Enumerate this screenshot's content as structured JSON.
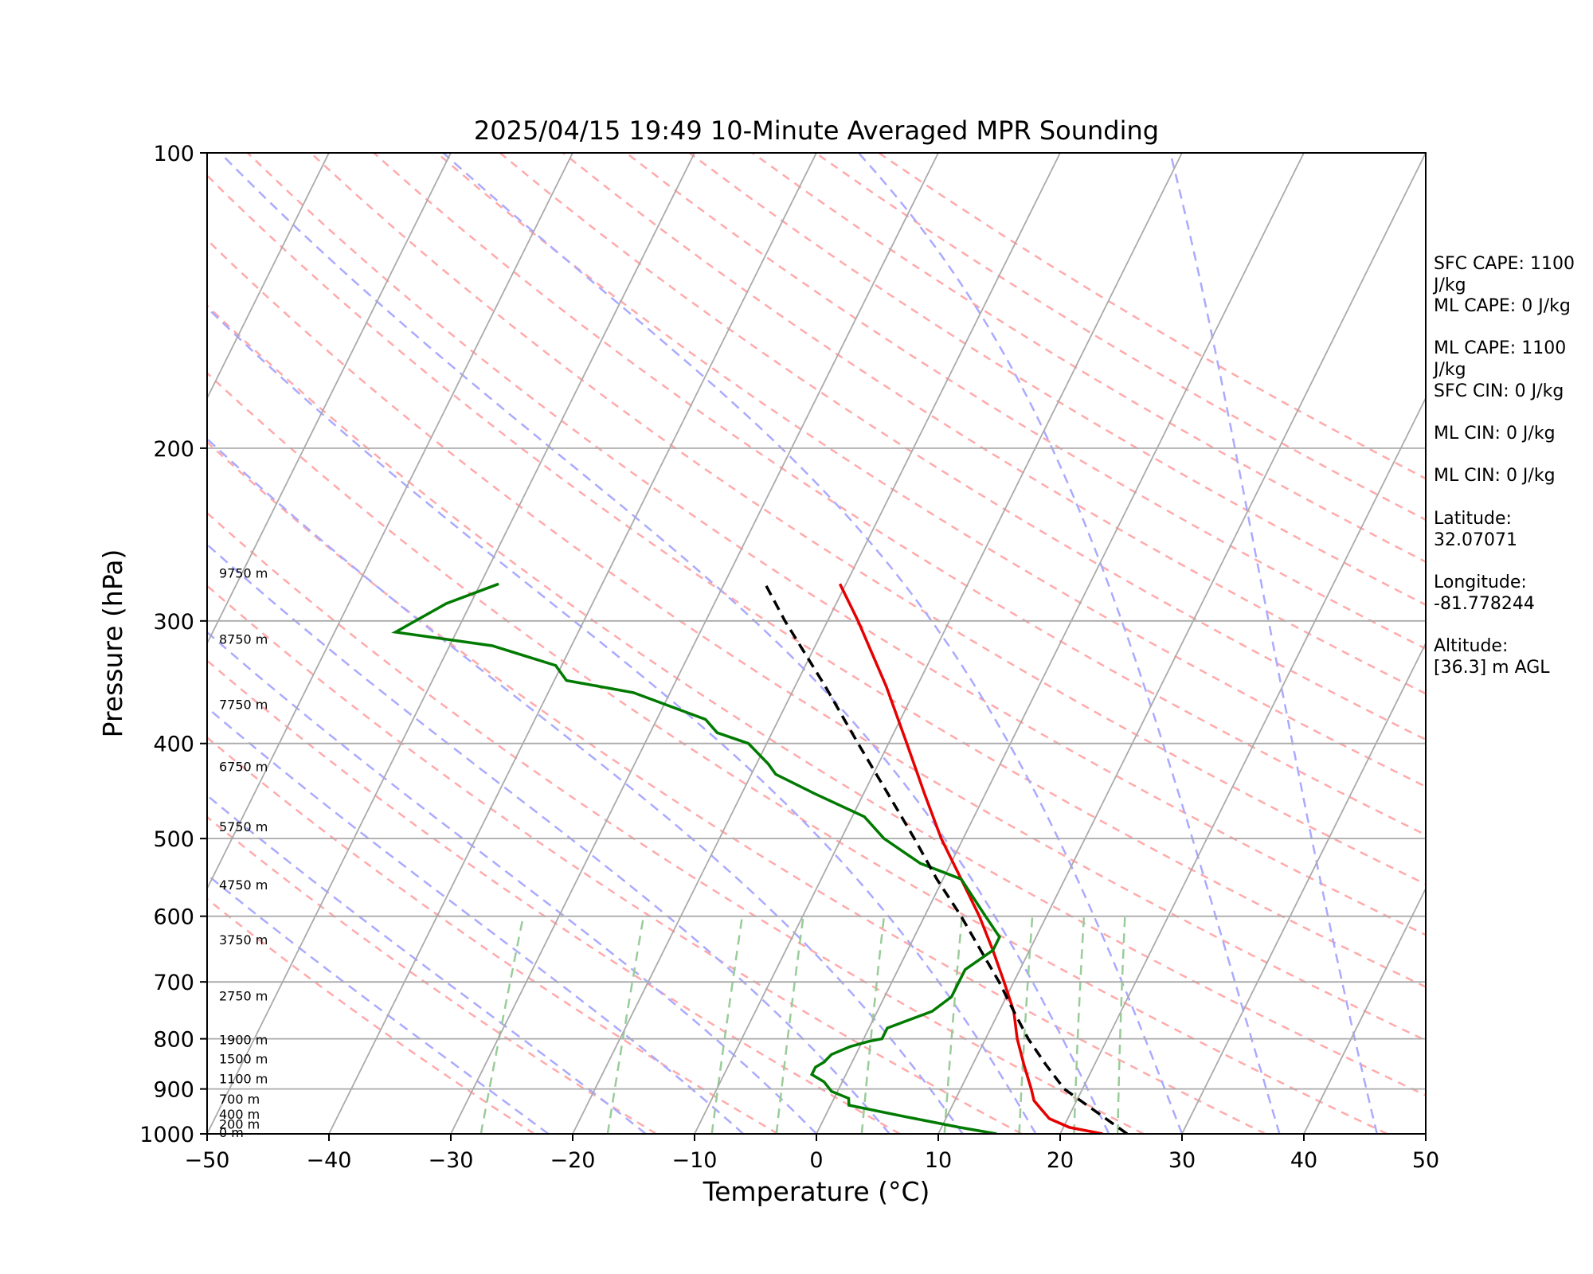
{
  "chart_data": {
    "type": "line",
    "title": "2025/04/15 19:49 10-Minute Averaged MPR Sounding",
    "xlabel": "Temperature (°C)",
    "ylabel": "Pressure (hPa)",
    "xlim": [
      -50,
      50
    ],
    "ylim": [
      1000,
      100
    ],
    "y_scale": "log",
    "skew": "skew-T log-P diagram",
    "grid": true,
    "x_ticks": [
      -50,
      -40,
      -30,
      -20,
      -10,
      0,
      10,
      20,
      30,
      40,
      50
    ],
    "x_tick_labels": [
      "−50",
      "−40",
      "−30",
      "−20",
      "−10",
      "0",
      "10",
      "20",
      "30",
      "40",
      "50"
    ],
    "y_ticks": [
      1000,
      900,
      800,
      700,
      600,
      500,
      400,
      300,
      200,
      100
    ],
    "y_tick_labels": [
      "1000",
      "900",
      "800",
      "700",
      "600",
      "500",
      "400",
      "300",
      "200",
      "100"
    ],
    "series": [
      {
        "color": "#e60000",
        "style": "solid",
        "points": [
          {
            "p": 1000,
            "t": 23.5
          },
          {
            "p": 985,
            "t": 20.5
          },
          {
            "p": 965,
            "t": 18.5
          },
          {
            "p": 945,
            "t": 17.5
          },
          {
            "p": 925,
            "t": 16.5
          },
          {
            "p": 900,
            "t": 15.8
          },
          {
            "p": 850,
            "t": 14.2
          },
          {
            "p": 800,
            "t": 12.6
          },
          {
            "p": 750,
            "t": 11.2
          },
          {
            "p": 700,
            "t": 9.2
          },
          {
            "p": 650,
            "t": 7.0
          },
          {
            "p": 600,
            "t": 4.5
          },
          {
            "p": 550,
            "t": 1.5
          },
          {
            "p": 500,
            "t": -1.8
          },
          {
            "p": 450,
            "t": -5.0
          },
          {
            "p": 400,
            "t": -8.5
          },
          {
            "p": 350,
            "t": -12.5
          },
          {
            "p": 300,
            "t": -17.5
          },
          {
            "p": 275,
            "t": -20.5
          }
        ]
      },
      {
        "color": "#007a00",
        "style": "solid",
        "points": [
          {
            "p": 1000,
            "t": 14.8
          },
          {
            "p": 985,
            "t": 11.5
          },
          {
            "p": 960,
            "t": 6.5
          },
          {
            "p": 935,
            "t": 1.5
          },
          {
            "p": 920,
            "t": 1.2
          },
          {
            "p": 905,
            "t": -0.5
          },
          {
            "p": 885,
            "t": -1.5
          },
          {
            "p": 870,
            "t": -2.8
          },
          {
            "p": 855,
            "t": -2.8
          },
          {
            "p": 845,
            "t": -2.3
          },
          {
            "p": 830,
            "t": -2.0
          },
          {
            "p": 815,
            "t": -0.8
          },
          {
            "p": 805,
            "t": 0.5
          },
          {
            "p": 800,
            "t": 1.5
          },
          {
            "p": 780,
            "t": 1.5
          },
          {
            "p": 750,
            "t": 4.5
          },
          {
            "p": 725,
            "t": 5.5
          },
          {
            "p": 700,
            "t": 5.5
          },
          {
            "p": 680,
            "t": 5.5
          },
          {
            "p": 650,
            "t": 7.0
          },
          {
            "p": 630,
            "t": 7.0
          },
          {
            "p": 600,
            "t": 5.0
          },
          {
            "p": 550,
            "t": 1.5
          },
          {
            "p": 530,
            "t": -2.5
          },
          {
            "p": 500,
            "t": -6.5
          },
          {
            "p": 475,
            "t": -9.0
          },
          {
            "p": 450,
            "t": -14.0
          },
          {
            "p": 430,
            "t": -18.0
          },
          {
            "p": 420,
            "t": -19.0
          },
          {
            "p": 400,
            "t": -21.5
          },
          {
            "p": 390,
            "t": -24.5
          },
          {
            "p": 378,
            "t": -26.0
          },
          {
            "p": 355,
            "t": -33.0
          },
          {
            "p": 345,
            "t": -39.0
          },
          {
            "p": 333,
            "t": -40.5
          },
          {
            "p": 318,
            "t": -46.5
          },
          {
            "p": 308,
            "t": -55.0
          },
          {
            "p": 288,
            "t": -52.0
          },
          {
            "p": 275,
            "t": -48.5
          }
        ]
      },
      {
        "color": "#000000",
        "style": "dashed",
        "points": [
          {
            "p": 1000,
            "t": 25.5
          },
          {
            "p": 900,
            "t": 18.5
          },
          {
            "p": 850,
            "t": 16.0
          },
          {
            "p": 800,
            "t": 13.5
          },
          {
            "p": 750,
            "t": 11.2
          },
          {
            "p": 700,
            "t": 8.8
          },
          {
            "p": 650,
            "t": 6.0
          },
          {
            "p": 600,
            "t": 3.0
          },
          {
            "p": 550,
            "t": -0.5
          },
          {
            "p": 500,
            "t": -4.0
          },
          {
            "p": 450,
            "t": -8.0
          },
          {
            "p": 400,
            "t": -12.5
          },
          {
            "p": 350,
            "t": -17.5
          },
          {
            "p": 300,
            "t": -23.5
          },
          {
            "p": 276,
            "t": -26.5
          }
        ]
      }
    ],
    "height_labels": [
      {
        "p": 996,
        "text": "0 m"
      },
      {
        "p": 977,
        "text": "200 m"
      },
      {
        "p": 954,
        "text": "400 m"
      },
      {
        "p": 921,
        "text": "700 m"
      },
      {
        "p": 878,
        "text": "1100 m"
      },
      {
        "p": 838,
        "text": "1500 m"
      },
      {
        "p": 801,
        "text": "1900 m"
      },
      {
        "p": 723,
        "text": "2750 m"
      },
      {
        "p": 634,
        "text": "3750 m"
      },
      {
        "p": 557,
        "text": "4750 m"
      },
      {
        "p": 486,
        "text": "5750 m"
      },
      {
        "p": 422,
        "text": "6750 m"
      },
      {
        "p": 365,
        "text": "7750 m"
      },
      {
        "p": 313,
        "text": "8750 m"
      },
      {
        "p": 268,
        "text": "9750 m"
      }
    ],
    "reference_lines": {
      "isotherm_color": "#aaaaaa",
      "dry_adiabat_color": "#ffaaaa",
      "moist_adiabat_color": "#aaaaff",
      "mixing_ratio_color": "#99cc99"
    }
  },
  "stats": [
    {
      "id": "sfc_cape",
      "text": "SFC CAPE: 1100 J/kg"
    },
    {
      "id": "ml_cape_1",
      "text": "ML CAPE: 0 J/kg"
    },
    {
      "id": "ml_cape_2",
      "text": "ML CAPE: 1100 J/kg"
    },
    {
      "id": "sfc_cin",
      "text": "SFC CIN: 0 J/kg"
    },
    {
      "id": "ml_cin_1",
      "text": "ML CIN: 0 J/kg"
    },
    {
      "id": "ml_cin_2",
      "text": "ML CIN: 0 J/kg"
    },
    {
      "id": "latitude",
      "text": "Latitude:\n32.07071"
    },
    {
      "id": "longitude",
      "text": "Longitude:\n-81.778244"
    },
    {
      "id": "altitude",
      "text": "Altitude:\n[36.3] m AGL"
    }
  ]
}
